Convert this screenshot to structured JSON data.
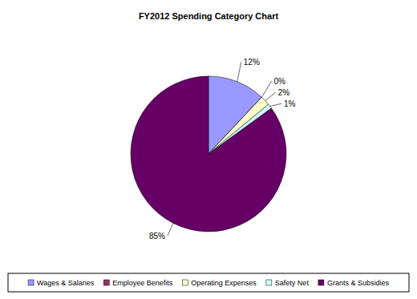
{
  "chart_data": {
    "type": "pie",
    "title": "FY2012 Spending Category Chart",
    "categories": [
      "Wages & Salaries",
      "Employee Benefits",
      "Operating Expenses",
      "Safety Net",
      "Grants & Subsidies"
    ],
    "values": [
      12,
      0,
      2,
      1,
      85
    ],
    "value_labels": [
      "12%",
      "0%",
      "2%",
      "1%",
      "85%"
    ],
    "colors": [
      "#9999ff",
      "#993366",
      "#ffffcc",
      "#ccffff",
      "#660066"
    ],
    "data_labels": true,
    "legend": "bottom"
  }
}
